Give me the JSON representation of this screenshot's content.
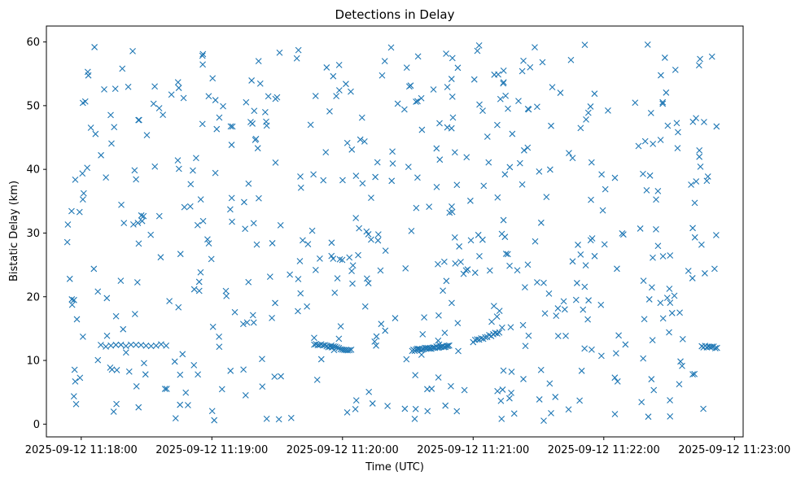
{
  "chart_data": {
    "type": "scatter",
    "title": "Detections in Delay",
    "xlabel": "Time (UTC)",
    "ylabel": "Bistatic Delay (km)",
    "marker": "x",
    "color": "#1f77b4",
    "grid": false,
    "legend": "none",
    "xlim": [
      "2025-09-12 11:17:44",
      "2025-09-12 11:23:04"
    ],
    "ylim": [
      -2,
      62.5
    ],
    "x_ticks": [
      "2025-09-12 11:18:00",
      "2025-09-12 11:19:00",
      "2025-09-12 11:20:00",
      "2025-09-12 11:21:00",
      "2025-09-12 11:22:00",
      "2025-09-12 11:23:00"
    ],
    "y_ticks": [
      0,
      10,
      20,
      30,
      40,
      50,
      60
    ],
    "track_1": {
      "name": "",
      "time_start": "2025-09-12 11:18:09",
      "time_end": "2025-09-12 11:18:39",
      "delay_start": 12.3,
      "delay_end": 12.4,
      "count": 14
    },
    "track_2": {
      "name": "",
      "time_start": "2025-09-12 11:19:47",
      "time_end": "2025-09-12 11:20:04",
      "delay_start": 12.6,
      "delay_end": 11.6,
      "count": 22
    },
    "track_3": {
      "name": "",
      "time_start": "2025-09-12 11:20:32",
      "time_end": "2025-09-12 11:20:49",
      "delay_start": 11.6,
      "delay_end": 12.3,
      "count": 30
    },
    "track_4": {
      "name": "",
      "time_start": "2025-09-12 11:21:00",
      "time_end": "2025-09-12 11:21:12",
      "delay_start": 13.0,
      "delay_end": 14.4,
      "count": 14
    },
    "track_5": {
      "name": "",
      "time_start": "2025-09-12 11:22:45",
      "time_end": "2025-09-12 11:22:52",
      "delay_start": 12.2,
      "delay_end": 12.0,
      "count": 10
    },
    "noise_points": {
      "time_start": "2025-09-12 11:17:53",
      "time_end": "2025-09-12 11:22:53",
      "delay_min": 0.5,
      "delay_max": 59.7,
      "count": 560
    }
  }
}
